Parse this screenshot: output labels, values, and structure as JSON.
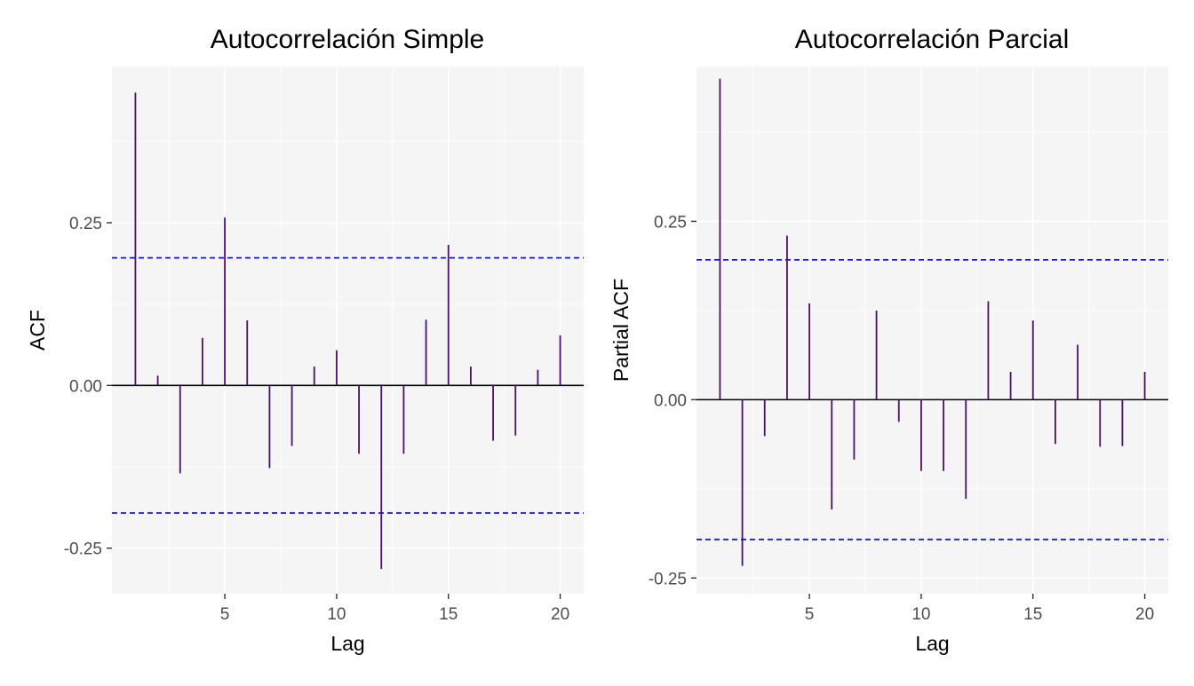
{
  "chart_data": [
    {
      "type": "bar",
      "title": "Autocorrelación Simple",
      "xlabel": "Lag",
      "ylabel": "ACF",
      "x_ticks": [
        5,
        10,
        15,
        20
      ],
      "x_tick_labels": [
        "5",
        "10",
        "15",
        "20"
      ],
      "y_ticks": [
        -0.25,
        0,
        0.25
      ],
      "y_tick_labels": [
        "-0.25",
        "0.00",
        "0.25"
      ],
      "xlim": [
        -0.05,
        21.05
      ],
      "ylim": [
        -0.32,
        0.49
      ],
      "confidence_band": [
        -0.196,
        0.196
      ],
      "x": [
        1,
        2,
        3,
        4,
        5,
        6,
        7,
        8,
        9,
        10,
        11,
        12,
        13,
        14,
        15,
        16,
        17,
        18,
        19,
        20
      ],
      "values": [
        0.45,
        0.015,
        -0.135,
        0.073,
        0.258,
        0.1,
        -0.127,
        -0.093,
        0.029,
        0.054,
        -0.105,
        -0.282,
        -0.105,
        0.101,
        0.216,
        0.029,
        -0.085,
        -0.077,
        0.024,
        0.077
      ],
      "grid": true,
      "colors": {
        "bars": "#4b0f6e",
        "band": "#0000ff",
        "zero_line": "#000000",
        "panel": "#f5f5f5",
        "grid": "#ffffff"
      }
    },
    {
      "type": "bar",
      "title": "Autocorrelación Parcial",
      "xlabel": "Lag",
      "ylabel": "Partial ACF",
      "x_ticks": [
        5,
        10,
        15,
        20
      ],
      "x_tick_labels": [
        "5",
        "10",
        "15",
        "20"
      ],
      "y_ticks": [
        -0.25,
        0,
        0.25
      ],
      "y_tick_labels": [
        "-0.25",
        "0.00",
        "0.25"
      ],
      "xlim": [
        -0.05,
        21.05
      ],
      "ylim": [
        -0.272,
        0.467
      ],
      "confidence_band": [
        -0.196,
        0.196
      ],
      "x": [
        1,
        2,
        3,
        4,
        5,
        6,
        7,
        8,
        9,
        10,
        11,
        12,
        13,
        14,
        15,
        16,
        17,
        18,
        19,
        20
      ],
      "values": [
        0.45,
        -0.233,
        -0.051,
        0.23,
        0.135,
        -0.154,
        -0.084,
        0.125,
        -0.031,
        -0.1,
        -0.1,
        -0.139,
        0.138,
        0.039,
        0.111,
        -0.062,
        0.077,
        -0.066,
        -0.065,
        0.039
      ],
      "grid": true,
      "colors": {
        "bars": "#4b0f6e",
        "band": "#0000ff",
        "zero_line": "#000000",
        "panel": "#f5f5f5",
        "grid": "#ffffff"
      }
    }
  ]
}
